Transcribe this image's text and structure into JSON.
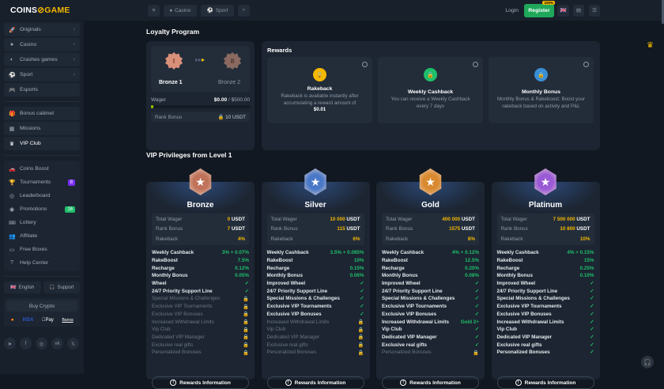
{
  "brand": {
    "left": "COINS",
    "mark": "⊘",
    "right": "GAME"
  },
  "sidebar": {
    "main": [
      {
        "label": "Originals",
        "icon": "rocket-icon"
      },
      {
        "label": "Casino",
        "icon": "spade-icon"
      },
      {
        "label": "Crashes games",
        "icon": "crash-icon"
      },
      {
        "label": "Sport",
        "icon": "ball-icon"
      },
      {
        "label": "Esports",
        "icon": "gamepad-icon"
      }
    ],
    "bonus": [
      {
        "label": "Bonus cabinet",
        "icon": "gift-icon"
      },
      {
        "label": "Missions",
        "icon": "grid-icon"
      },
      {
        "label": "VIP Club",
        "icon": "crown-icon"
      }
    ],
    "extra": [
      {
        "label": "Coins Boost",
        "icon": "boost-icon"
      },
      {
        "label": "Tournaments",
        "icon": "trophy-icon",
        "badge": "8"
      },
      {
        "label": "Leaderboard",
        "icon": "medal-icon"
      },
      {
        "label": "Promotions",
        "icon": "promo-icon",
        "badge": "16"
      },
      {
        "label": "Lottery",
        "icon": "ticket-icon"
      },
      {
        "label": "Affiliate",
        "icon": "people-icon"
      },
      {
        "label": "Free Boxes",
        "icon": "box-icon"
      },
      {
        "label": "Help Center",
        "icon": "help-icon"
      }
    ],
    "language": "English",
    "support": "Support",
    "buy_crypto": "Buy Crypto",
    "payments": [
      "Mastercard",
      "VISA",
      "Pay",
      "Banxa"
    ],
    "socials": [
      "telegram-icon",
      "facebook-icon",
      "instagram-icon",
      "vk-icon",
      "x-icon"
    ],
    "colors": {
      "tournaments_badge": "#7b2ff7",
      "promotions_badge": "#1fbf6b"
    }
  },
  "topbar": {
    "casino": "Casino",
    "sport": "Sport",
    "login": "Login",
    "register": "Register",
    "register_badge": "100%"
  },
  "loyalty": {
    "title": "Loyalty Program",
    "current": "Bronze 1",
    "next": "Bronze 2",
    "current_numeral": "I",
    "next_numeral": "II",
    "wager_label": "Wager",
    "wager_value": "$0.00",
    "wager_target": "/ $500.00",
    "progress": 0,
    "rank_bonus_label": "Rank Bonus",
    "rank_bonus_value": "10 USDT"
  },
  "rewards": {
    "title": "Rewards",
    "items": [
      {
        "title": "Rakeback",
        "desc": "Rakeback is available instantly after accumulating a reward amount of",
        "strong": "$0.01",
        "color": "#f5b800"
      },
      {
        "title": "Weekly Cashback",
        "desc": "You can receive a Weekly Cashback every 7 days",
        "strong": "",
        "color": "#1fbf6b"
      },
      {
        "title": "Monthly Bonus",
        "desc": "Monthly Bonus & Rakeboost: Boost your rakeback based on activity and P&L",
        "strong": "",
        "color": "#3a8fd6"
      }
    ]
  },
  "vip": {
    "title": "VIP Privileges from Level 1",
    "button": "Rewards Information",
    "stat_labels": [
      "Total Wager",
      "Rank Bonus",
      "Rakeback"
    ],
    "unit": "USDT",
    "tiers": [
      {
        "name": "Bronze",
        "color": "#c0735a",
        "wager": "0",
        "bonus": "7",
        "rakeback": "4%",
        "features": [
          [
            "Weekly Cashback",
            "3% + 0.07%"
          ],
          [
            "RakeBoost",
            "7.5%"
          ],
          [
            "Recharge",
            "0.12%"
          ],
          [
            "Monthly Bonus",
            "0.05%"
          ],
          [
            "Wheel",
            "check"
          ],
          [
            "24/7 Priority Support Line",
            "check"
          ],
          [
            "Special Missions & Challenges",
            "lock"
          ],
          [
            "Exclusive VIP Tournaments",
            "lock"
          ],
          [
            "Exclusive VIP Bonuses",
            "lock"
          ],
          [
            "Increased Withdrawal Limits",
            "lock"
          ],
          [
            "Vip Club",
            "lock"
          ],
          [
            "Dedicated VIP Manager",
            "lock"
          ],
          [
            "Exclusive real gifts",
            "lock"
          ],
          [
            "Personalized Bonuses",
            "lock"
          ]
        ]
      },
      {
        "name": "Silver",
        "color": "#4a78c8",
        "wager": "10 000",
        "bonus": "115",
        "rakeback": "6%",
        "features": [
          [
            "Weekly Cashback",
            "3.5% + 0.085%"
          ],
          [
            "RakeBoost",
            "10%"
          ],
          [
            "Recharge",
            "0.15%"
          ],
          [
            "Monthly Bonus",
            "0.06%"
          ],
          [
            "Improved Wheel",
            "check"
          ],
          [
            "24/7 Priority Support Line",
            "check"
          ],
          [
            "Special Missions & Challenges",
            "check"
          ],
          [
            "Exclusive VIP Tournaments",
            "check"
          ],
          [
            "Exclusive VIP Bonuses",
            "check"
          ],
          [
            "Increased Withdrawal Limits",
            "lock"
          ],
          [
            "Vip Club",
            "lock"
          ],
          [
            "Dedicated VIP Manager",
            "lock"
          ],
          [
            "Exclusive real gifts",
            "lock"
          ],
          [
            "Personalized Bonuses",
            "lock"
          ]
        ]
      },
      {
        "name": "Gold",
        "color": "#d9892f",
        "wager": "400 000",
        "bonus": "1575",
        "rakeback": "8%",
        "features": [
          [
            "Weekly Cashback",
            "4% + 0.12%"
          ],
          [
            "RakeBoost",
            "12.5%"
          ],
          [
            "Recharge",
            "0.20%"
          ],
          [
            "Monthly Bonus",
            "0.08%"
          ],
          [
            "Improved Wheel",
            "check"
          ],
          [
            "24/7 Priority Support Line",
            "check"
          ],
          [
            "Special Missions & Challenges",
            "check"
          ],
          [
            "Exclusive VIP Tournaments",
            "check"
          ],
          [
            "Exclusive VIP Bonuses",
            "check"
          ],
          [
            "Increased Withdrawal Limits",
            "Gold 2+"
          ],
          [
            "Vip Club",
            "check"
          ],
          [
            "Dedicated VIP Manager",
            "check"
          ],
          [
            "Exclusive real gifts",
            "check"
          ],
          [
            "Personalized Bonuses",
            "lock"
          ]
        ]
      },
      {
        "name": "Platinum",
        "color": "#9a5ad6",
        "wager": "7 500 000",
        "bonus": "10 800",
        "rakeback": "10%",
        "features": [
          [
            "Weekly Cashback",
            "4% + 0.15%"
          ],
          [
            "RakeBoost",
            "15%"
          ],
          [
            "Recharge",
            "0.25%"
          ],
          [
            "Monthly Bonus",
            "0.10%"
          ],
          [
            "Improved Wheel",
            "check"
          ],
          [
            "24/7 Priority Support Line",
            "check"
          ],
          [
            "Special Missions & Challenges",
            "check"
          ],
          [
            "Exclusive VIP Tournaments",
            "check"
          ],
          [
            "Exclusive VIP Bonuses",
            "check"
          ],
          [
            "Increased Withdrawal Limits",
            "check"
          ],
          [
            "Vip Club",
            "check"
          ],
          [
            "Dedicated VIP Manager",
            "check"
          ],
          [
            "Exclusive real gifts",
            "check"
          ],
          [
            "Personalized Bonuses",
            "check"
          ]
        ]
      }
    ]
  }
}
